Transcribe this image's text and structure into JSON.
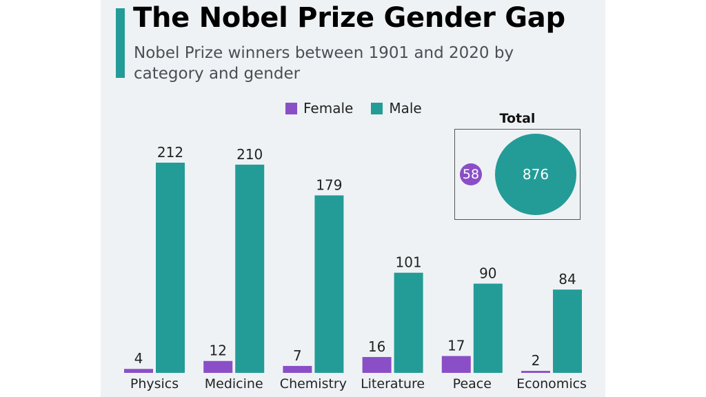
{
  "header": {
    "title": "The Nobel Prize Gender Gap",
    "subtitle": "Nobel Prize winners between 1901 and 2020 by category and gender"
  },
  "legend": [
    {
      "label": "Female",
      "color": "#8a4fc7"
    },
    {
      "label": "Male",
      "color": "#239c98"
    }
  ],
  "total": {
    "title": "Total",
    "female": "58",
    "male": "876"
  },
  "chart_data": {
    "type": "bar",
    "categories": [
      "Physics",
      "Medicine",
      "Chemistry",
      "Literature",
      "Peace",
      "Economics"
    ],
    "series": [
      {
        "name": "Female",
        "color": "#8a4fc7",
        "values": [
          4,
          12,
          7,
          16,
          17,
          2
        ]
      },
      {
        "name": "Male",
        "color": "#239c98",
        "values": [
          212,
          210,
          179,
          101,
          90,
          84
        ]
      }
    ],
    "xlabel": "",
    "ylabel": "",
    "ylim": [
      0,
      212
    ],
    "grid": false,
    "legend_position": "top"
  }
}
